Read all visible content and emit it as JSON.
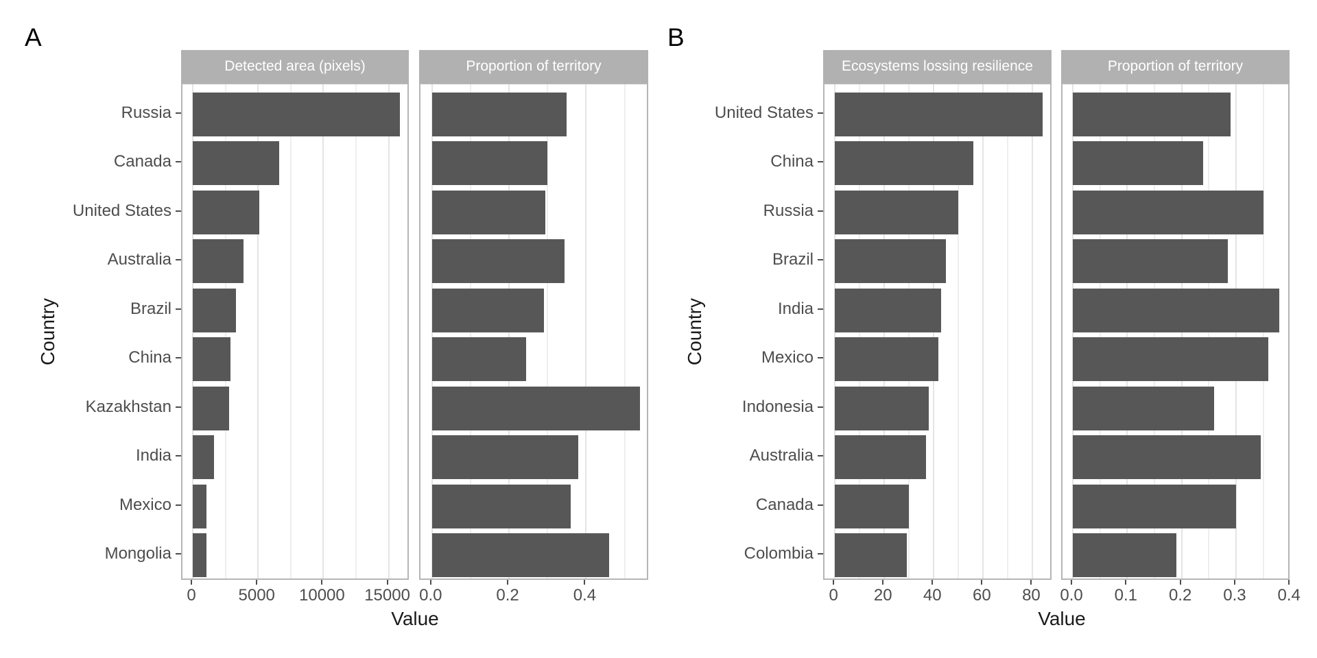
{
  "figure": {
    "background": "#ffffff",
    "panel_labels": [
      "A",
      "B"
    ]
  },
  "colors": {
    "bar_fill": "#575757",
    "strip_background": "#b1b1b1",
    "strip_text": "#ffffff",
    "panel_border": "#b5b5b5",
    "grid_major": "#e4e4e4",
    "grid_minor": "#eeeeee",
    "tick_mark": "#4d4d4d",
    "axis_text": "#4d4d4d",
    "axis_title": "#1a1a1a",
    "panel_label": "#000000"
  },
  "chart_data": [
    {
      "type": "bar",
      "orientation": "horizontal",
      "panel_label": "A",
      "xlabel": "Value",
      "ylabel": "Country",
      "legend": "none",
      "grid": true,
      "categories": [
        "Russia",
        "Canada",
        "United States",
        "Australia",
        "Brazil",
        "China",
        "Kazakhstan",
        "India",
        "Mexico",
        "Mongolia"
      ],
      "facets": [
        {
          "title": "Detected area (pixels)",
          "values": [
            15860,
            6630,
            5110,
            3880,
            3300,
            2880,
            2780,
            1650,
            1050,
            1050
          ],
          "ticks": [
            0,
            5000,
            10000,
            15000
          ],
          "tick_labels": [
            "0",
            "5000",
            "10000",
            "15000"
          ],
          "minor_ticks": [
            2500,
            7500,
            12500
          ],
          "xlim": [
            -790,
            16650
          ]
        },
        {
          "title": "Proportion of territory",
          "values": [
            0.35,
            0.3,
            0.295,
            0.345,
            0.29,
            0.245,
            0.54,
            0.38,
            0.36,
            0.46
          ],
          "ticks": [
            0,
            0.2,
            0.4
          ],
          "tick_labels": [
            "0.0",
            "0.2",
            "0.4"
          ],
          "minor_ticks": [
            0.1,
            0.3,
            0.5
          ],
          "xlim": [
            -0.03,
            0.565
          ]
        }
      ]
    },
    {
      "type": "bar",
      "orientation": "horizontal",
      "panel_label": "B",
      "xlabel": "Value",
      "ylabel": "Country",
      "legend": "none",
      "grid": true,
      "categories": [
        "United States",
        "China",
        "Russia",
        "Brazil",
        "India",
        "Mexico",
        "Indonesia",
        "Australia",
        "Canada",
        "Colombia"
      ],
      "facets": [
        {
          "title": "Ecosystems lossing resilience",
          "values": [
            84,
            56,
            50,
            45,
            43,
            42,
            38,
            37,
            30,
            29
          ],
          "ticks": [
            0,
            20,
            40,
            60,
            80
          ],
          "tick_labels": [
            "0",
            "20",
            "40",
            "60",
            "80"
          ],
          "minor_ticks": [
            10,
            30,
            50,
            70
          ],
          "xlim": [
            -4.2,
            88.2
          ]
        },
        {
          "title": "Proportion of territory",
          "values": [
            0.29,
            0.24,
            0.35,
            0.285,
            0.38,
            0.36,
            0.26,
            0.345,
            0.3,
            0.19
          ],
          "ticks": [
            0,
            0.1,
            0.2,
            0.3,
            0.4
          ],
          "tick_labels": [
            "0.0",
            "0.1",
            "0.2",
            "0.3",
            "0.4"
          ],
          "minor_ticks": [
            0.05,
            0.15,
            0.25,
            0.35
          ],
          "xlim": [
            -0.019,
            0.401
          ]
        }
      ]
    }
  ]
}
